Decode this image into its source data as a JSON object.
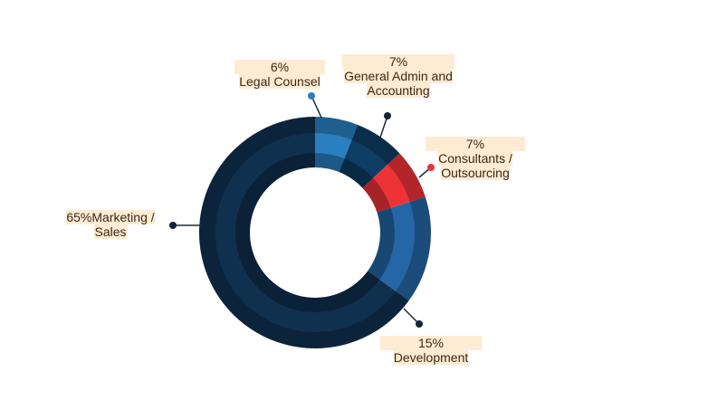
{
  "chart_data": {
    "type": "donut",
    "categories": [
      "Legal Counsel",
      "General Admin and Accounting",
      "Consultants / Outsourcing",
      "Development",
      "Marketing / Sales"
    ],
    "values": [
      6,
      7,
      7,
      15,
      65
    ],
    "value_labels": [
      "6%",
      "7%",
      "7%",
      "15%",
      "65%"
    ],
    "colors": [
      "#2a7fc0",
      "#0e3d63",
      "#ee3338",
      "#2566a6",
      "#10304f"
    ]
  }
}
